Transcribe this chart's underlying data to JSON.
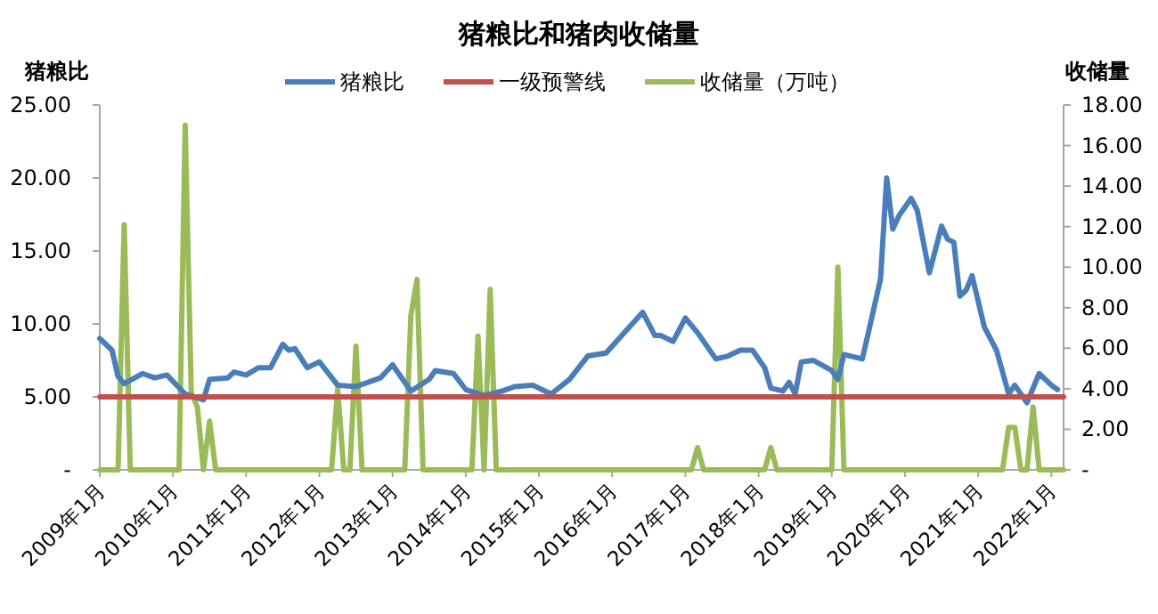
{
  "chart_data": {
    "type": "line",
    "title": "猪粮比和猪肉收储量",
    "ylabel": "猪粮比",
    "y2label": "收储量",
    "legend": "top",
    "xlim": [
      "2009-01",
      "2022-03"
    ],
    "xticks": [
      {
        "value": "2009-01",
        "label": "2009年1月"
      },
      {
        "value": "2010-01",
        "label": "2010年1月"
      },
      {
        "value": "2011-01",
        "label": "2011年1月"
      },
      {
        "value": "2012-01",
        "label": "2012年1月"
      },
      {
        "value": "2013-01",
        "label": "2013年1月"
      },
      {
        "value": "2014-01",
        "label": "2014年1月"
      },
      {
        "value": "2015-01",
        "label": "2015年1月"
      },
      {
        "value": "2016-01",
        "label": "2016年1月"
      },
      {
        "value": "2017-01",
        "label": "2017年1月"
      },
      {
        "value": "2018-01",
        "label": "2018年1月"
      },
      {
        "value": "2019-01",
        "label": "2019年1月"
      },
      {
        "value": "2020-01",
        "label": "2020年1月"
      },
      {
        "value": "2021-01",
        "label": "2021年1月"
      },
      {
        "value": "2022-01",
        "label": "2022年1月"
      }
    ],
    "ylim": [
      0,
      25
    ],
    "yticks": [
      {
        "value": 0,
        "label": "-"
      },
      {
        "value": 5,
        "label": "5.00"
      },
      {
        "value": 10,
        "label": "10.00"
      },
      {
        "value": 15,
        "label": "15.00"
      },
      {
        "value": 20,
        "label": "20.00"
      },
      {
        "value": 25,
        "label": "25.00"
      }
    ],
    "y2lim": [
      0,
      18
    ],
    "y2ticks": [
      {
        "value": 0,
        "label": "-"
      },
      {
        "value": 2,
        "label": "2.00"
      },
      {
        "value": 4,
        "label": "4.00"
      },
      {
        "value": 6,
        "label": "6.00"
      },
      {
        "value": 8,
        "label": "8.00"
      },
      {
        "value": 10,
        "label": "10.00"
      },
      {
        "value": 12,
        "label": "12.00"
      },
      {
        "value": 14,
        "label": "14.00"
      },
      {
        "value": 16,
        "label": "16.00"
      },
      {
        "value": 18,
        "label": "18.00"
      }
    ],
    "series": [
      {
        "name": "猪粮比",
        "color": "#4a7ebb",
        "x": [
          "2009-01",
          "2009-03",
          "2009-04",
          "2009-05",
          "2009-08",
          "2009-10",
          "2009-12",
          "2010-03",
          "2010-06",
          "2010-07",
          "2010-10",
          "2010-11",
          "2011-01",
          "2011-03",
          "2011-05",
          "2011-07",
          "2011-08",
          "2011-09",
          "2011-11",
          "2012-01",
          "2012-04",
          "2012-07",
          "2012-11",
          "2013-01",
          "2013-04",
          "2013-07",
          "2013-08",
          "2013-11",
          "2014-01",
          "2014-04",
          "2014-07",
          "2014-09",
          "2014-12",
          "2015-03",
          "2015-06",
          "2015-09",
          "2015-12",
          "2016-03",
          "2016-06",
          "2016-08",
          "2016-09",
          "2016-11",
          "2017-01",
          "2017-03",
          "2017-06",
          "2017-08",
          "2017-10",
          "2017-12",
          "2018-02",
          "2018-03",
          "2018-05",
          "2018-06",
          "2018-07",
          "2018-08",
          "2018-10",
          "2019-01",
          "2019-02",
          "2019-03",
          "2019-06",
          "2019-07",
          "2019-09",
          "2019-10",
          "2019-11",
          "2019-12",
          "2020-02",
          "2020-03",
          "2020-05",
          "2020-07",
          "2020-08",
          "2020-09",
          "2020-10",
          "2020-11",
          "2020-12",
          "2021-02",
          "2021-04",
          "2021-06",
          "2021-07",
          "2021-09",
          "2021-11",
          "2022-01",
          "2022-02"
        ],
        "values": [
          9.0,
          8.2,
          6.4,
          5.9,
          6.6,
          6.3,
          6.5,
          5.2,
          4.8,
          6.2,
          6.3,
          6.7,
          6.5,
          7.0,
          7.0,
          8.6,
          8.2,
          8.3,
          7.0,
          7.4,
          5.8,
          5.7,
          6.3,
          7.2,
          5.4,
          6.2,
          6.8,
          6.6,
          5.5,
          5.1,
          5.4,
          5.7,
          5.8,
          5.2,
          6.2,
          7.8,
          8.0,
          9.4,
          10.8,
          9.2,
          9.2,
          8.8,
          10.4,
          9.4,
          7.6,
          7.8,
          8.2,
          8.2,
          7.0,
          5.6,
          5.4,
          6.0,
          5.2,
          7.4,
          7.5,
          6.8,
          6.2,
          7.9,
          7.6,
          9.4,
          13.1,
          20.0,
          16.5,
          17.4,
          18.6,
          17.8,
          13.5,
          16.7,
          15.8,
          15.6,
          11.9,
          12.3,
          13.3,
          9.8,
          8.2,
          5.2,
          5.8,
          4.6,
          6.6,
          5.8,
          5.5
        ]
      },
      {
        "name": "一级预警线",
        "color": "#c0504d",
        "x": [
          "2009-01",
          "2022-03"
        ],
        "values": [
          5,
          5
        ]
      },
      {
        "name": "收储量（万吨）",
        "axis": "y2",
        "color": "#9bbb59",
        "x": [
          "2009-01",
          "2009-04",
          "2009-05",
          "2009-06",
          "2010-02",
          "2010-03",
          "2010-04",
          "2010-05",
          "2010-06",
          "2010-07",
          "2010-08",
          "2012-03",
          "2012-04",
          "2012-05",
          "2012-06",
          "2012-07",
          "2012-08",
          "2013-03",
          "2013-04",
          "2013-05",
          "2013-06",
          "2014-02",
          "2014-03",
          "2014-04",
          "2014-05",
          "2014-06",
          "2017-02",
          "2017-03",
          "2017-04",
          "2018-02",
          "2018-03",
          "2018-04",
          "2019-01",
          "2019-02",
          "2019-03",
          "2021-05",
          "2021-06",
          "2021-07",
          "2021-08",
          "2021-09",
          "2021-10",
          "2021-11",
          "2022-03"
        ],
        "values": [
          0,
          0,
          12.1,
          0,
          0,
          17.0,
          3.8,
          3.1,
          0,
          2.4,
          0,
          0,
          4.0,
          0,
          0,
          6.1,
          0,
          0,
          7.6,
          9.4,
          0,
          0,
          6.6,
          0,
          8.9,
          0,
          0,
          1.1,
          0,
          0,
          1.1,
          0,
          0,
          10.0,
          0,
          0,
          2.1,
          2.1,
          0,
          0,
          3.1,
          0,
          0
        ]
      }
    ]
  }
}
